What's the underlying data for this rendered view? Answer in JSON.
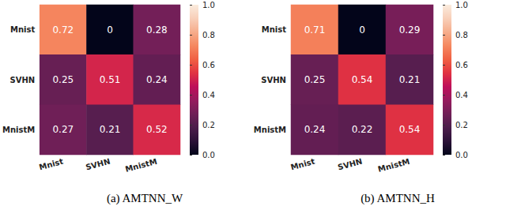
{
  "chart_data": [
    {
      "type": "heatmap",
      "title": "(a) AMTNN_W",
      "x": [
        "Mnist",
        "SVHN",
        "MnistM"
      ],
      "y": [
        "Mnist",
        "SVHN",
        "MnistM"
      ],
      "cells": [
        [
          0.72,
          0,
          0.28
        ],
        [
          0.25,
          0.51,
          0.24
        ],
        [
          0.27,
          0.21,
          0.52
        ]
      ],
      "data_labels": true,
      "colorbar_range": [
        0,
        1
      ],
      "colorbar_ticks": [
        {
          "value": 0,
          "label": "0.0"
        },
        0.2,
        0.4,
        0.6,
        0.8,
        {
          "value": 1,
          "label": "1.0"
        }
      ]
    },
    {
      "type": "heatmap",
      "title": "(b) AMTNN_H",
      "x": [
        "Mnist",
        "SVHN",
        "MnistM"
      ],
      "y": [
        "Mnist",
        "SVHN",
        "MnistM"
      ],
      "cells": [
        [
          0.71,
          0,
          0.29
        ],
        [
          0.25,
          0.54,
          0.21
        ],
        [
          0.24,
          0.22,
          0.54
        ]
      ],
      "data_labels": true,
      "colorbar_range": [
        0,
        1
      ],
      "colorbar_ticks": [
        {
          "value": 0,
          "label": "0.0"
        },
        0.2,
        0.4,
        0.6,
        0.8,
        {
          "value": 1,
          "label": "1.0"
        }
      ]
    }
  ]
}
